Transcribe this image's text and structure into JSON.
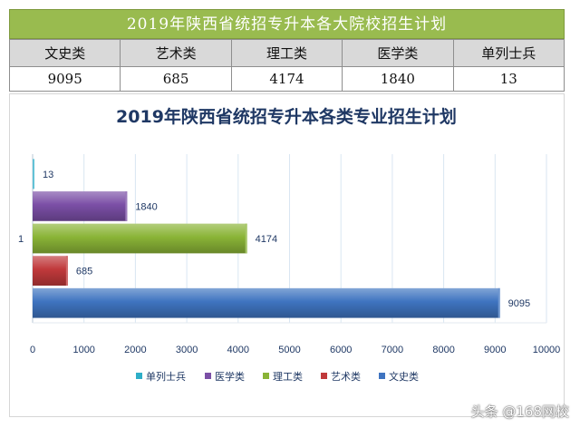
{
  "banner": {
    "title": "2019年陕西省统招专升本各大院校招生计划"
  },
  "table": {
    "headers": [
      "文史类",
      "艺术类",
      "理工类",
      "医学类",
      "单列士兵"
    ],
    "values": [
      "9095",
      "685",
      "4174",
      "1840",
      "13"
    ]
  },
  "chart_data": {
    "type": "bar",
    "orientation": "horizontal",
    "title": "2019年陕西省统招专升本各类专业招生计划",
    "categories": [
      "1"
    ],
    "series": [
      {
        "name": "文史类",
        "values": [
          9095
        ],
        "color": "#3f74c0"
      },
      {
        "name": "艺术类",
        "values": [
          685
        ],
        "color": "#c0393b"
      },
      {
        "name": "理工类",
        "values": [
          4174
        ],
        "color": "#8ab437"
      },
      {
        "name": "医学类",
        "values": [
          1840
        ],
        "color": "#7b4fa6"
      },
      {
        "name": "单列士兵",
        "values": [
          13
        ],
        "color": "#2eaec8"
      }
    ],
    "xlim": [
      0,
      10000
    ],
    "xticks": [
      "0",
      "1000",
      "2000",
      "3000",
      "4000",
      "5000",
      "6000",
      "7000",
      "8000",
      "9000",
      "10000"
    ],
    "grid": true,
    "legend_position": "bottom",
    "legend_order": [
      "单列士兵",
      "医学类",
      "理工类",
      "艺术类",
      "文史类"
    ]
  },
  "watermark": {
    "text": "头条 @168网校"
  }
}
